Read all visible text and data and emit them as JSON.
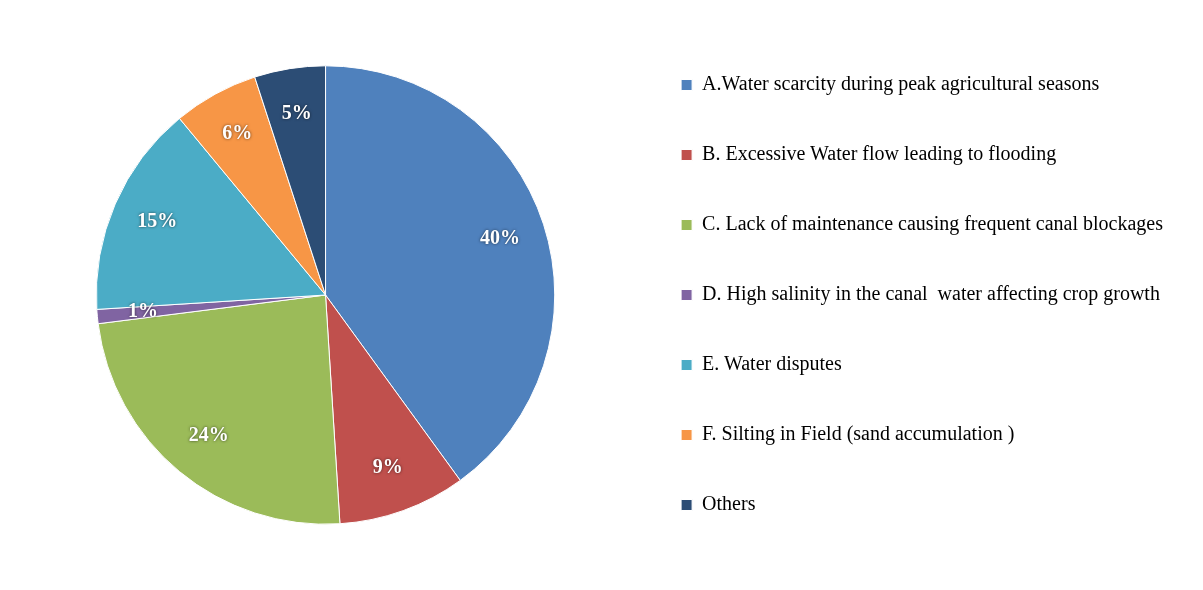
{
  "chart_data": {
    "type": "pie",
    "categories": [
      "A.Water scarcity during peak agricultural seasons",
      "B. Excessive Water flow leading to flooding",
      "C. Lack of maintenance causing frequent canal blockages",
      "D. High salinity in the canal  water affecting crop growth",
      "E. Water disputes",
      "F. Silting in Field (sand accumulation )",
      "Others"
    ],
    "values": [
      40,
      9,
      24,
      1,
      15,
      6,
      5
    ],
    "colors": [
      "#4f81bd",
      "#c0504d",
      "#9bbb59",
      "#8064a2",
      "#4bacc6",
      "#f79646",
      "#2c4d75"
    ],
    "value_labels": [
      "40%",
      "9%",
      "24%",
      "1%",
      "15%",
      "6%",
      "5%"
    ],
    "legend": "right"
  }
}
